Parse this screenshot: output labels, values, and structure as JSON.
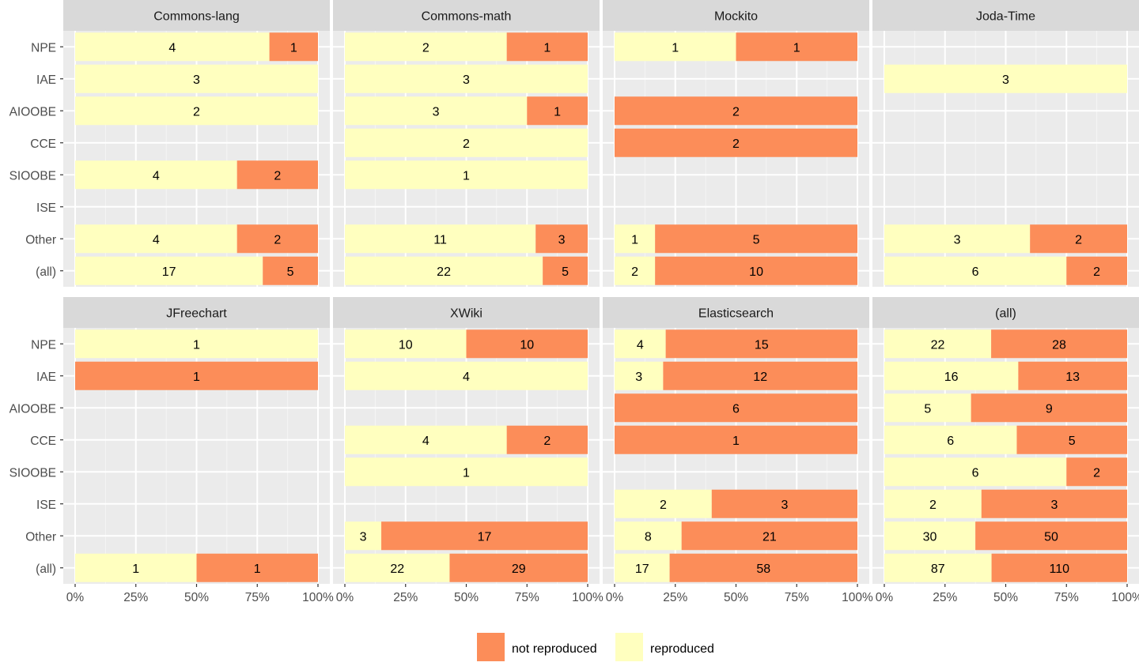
{
  "chart_data": {
    "type": "bar",
    "orientation": "horizontal",
    "stacked": "percent",
    "categories": [
      "NPE",
      "IAE",
      "AIOOBE",
      "CCE",
      "SIOOBE",
      "ISE",
      "Other",
      "(all)"
    ],
    "x_ticks": [
      "0%",
      "25%",
      "50%",
      "75%",
      "100%"
    ],
    "grid": true,
    "legend": {
      "position": "bottom",
      "items": [
        {
          "key": "not_reproduced",
          "label": "not reproduced",
          "color": "#FC8D59"
        },
        {
          "key": "reproduced",
          "label": "reproduced",
          "color": "#FFFFBF"
        }
      ]
    },
    "panels": [
      {
        "title": "Commons-lang",
        "reproduced": [
          4,
          3,
          2,
          null,
          4,
          null,
          4,
          17
        ],
        "not_reproduced": [
          1,
          null,
          null,
          null,
          2,
          null,
          2,
          5
        ]
      },
      {
        "title": "Commons-math",
        "reproduced": [
          2,
          3,
          3,
          2,
          1,
          null,
          11,
          22
        ],
        "not_reproduced": [
          1,
          null,
          1,
          null,
          null,
          null,
          3,
          5
        ]
      },
      {
        "title": "Mockito",
        "reproduced": [
          1,
          null,
          null,
          null,
          null,
          null,
          1,
          2
        ],
        "not_reproduced": [
          1,
          null,
          2,
          2,
          null,
          null,
          5,
          10
        ]
      },
      {
        "title": "Joda-Time",
        "reproduced": [
          null,
          3,
          null,
          null,
          null,
          null,
          3,
          6
        ],
        "not_reproduced": [
          null,
          null,
          null,
          null,
          null,
          null,
          2,
          2
        ]
      },
      {
        "title": "JFreechart",
        "reproduced": [
          1,
          null,
          null,
          null,
          null,
          null,
          null,
          1
        ],
        "not_reproduced": [
          null,
          1,
          null,
          null,
          null,
          null,
          null,
          1
        ]
      },
      {
        "title": "XWiki",
        "reproduced": [
          10,
          4,
          null,
          4,
          1,
          null,
          3,
          22
        ],
        "not_reproduced": [
          10,
          null,
          null,
          2,
          null,
          null,
          17,
          29
        ]
      },
      {
        "title": "Elasticsearch",
        "reproduced": [
          4,
          3,
          null,
          null,
          null,
          2,
          8,
          17
        ],
        "not_reproduced": [
          15,
          12,
          6,
          1,
          null,
          3,
          21,
          58
        ]
      },
      {
        "title": "(all)",
        "reproduced": [
          22,
          16,
          5,
          6,
          6,
          2,
          30,
          87
        ],
        "not_reproduced": [
          28,
          13,
          9,
          5,
          2,
          3,
          50,
          110
        ]
      }
    ]
  }
}
